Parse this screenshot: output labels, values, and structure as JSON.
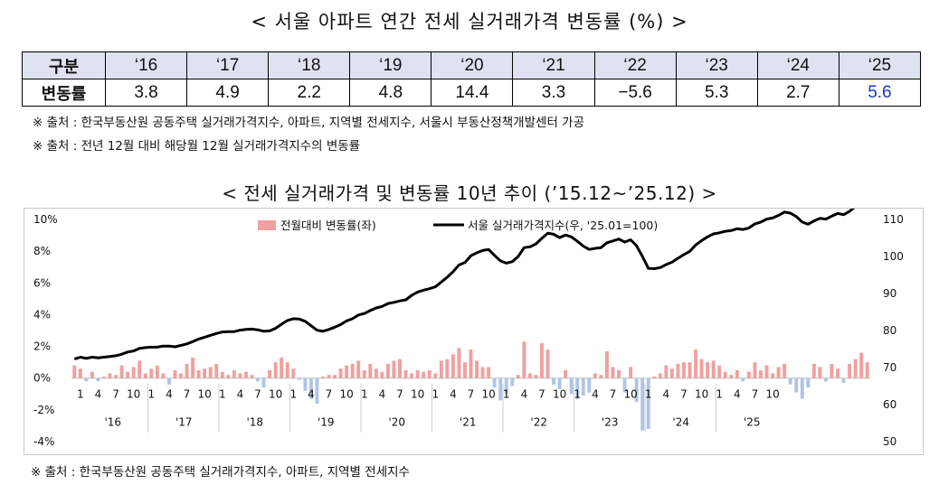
{
  "table": {
    "title": "< 서울 아파트 연간 전세 실거래가격 변동률 (%) >",
    "header_label": "구분",
    "row_label": "변동률",
    "years": [
      "‘16",
      "‘17",
      "‘18",
      "‘19",
      "‘20",
      "‘21",
      "‘22",
      "‘23",
      "‘24",
      "‘25"
    ],
    "values": [
      "3.8",
      "4.9",
      "2.2",
      "4.8",
      "14.4",
      "3.3",
      "−5.6",
      "5.3",
      "2.7",
      "5.6"
    ],
    "highlight_color": "#1f35c4",
    "notes": [
      "※ 출처 : 한국부동산원 공동주택 실거래가격지수, 아파트, 지역별 전세지수, 서울시 부동산정책개발센터 가공",
      "※ 출처 : 전년 12월 대비 해당월 12월 실거래가격지수의 변동률"
    ]
  },
  "chart_data": {
    "type": "bar+line",
    "title": "< 전세 실거래가격 및 변동률 10년 추이 (’15.12~’25.12) >",
    "legend": {
      "bar": "전월대비 변동률(좌)",
      "line": "서울 실거래가격지수(우, '25.01=100)",
      "position": "top-center"
    },
    "left_axis": {
      "min": -4,
      "max": 10,
      "ticks": [
        -4,
        -2,
        0,
        2,
        4,
        6,
        8,
        10
      ],
      "format": "%"
    },
    "right_axis": {
      "min": 50,
      "max": 110,
      "ticks": [
        50,
        60,
        70,
        80,
        90,
        100,
        110
      ]
    },
    "year_labels": [
      "'16",
      "'17",
      "'18",
      "'19",
      "'20",
      "'21",
      "'22",
      "'23",
      "'24",
      "'25"
    ],
    "month_tick_labels": [
      "1",
      "4",
      "7",
      "10"
    ],
    "bar_pos_color": "#f0a0a0",
    "bar_neg_color": "#b0c4e6",
    "line_color": "#000000",
    "monthly_change": [
      0.8,
      0.6,
      -0.2,
      0.4,
      -0.2,
      0.1,
      0.3,
      0.2,
      0.8,
      0.4,
      0.7,
      1.1,
      0.3,
      0.6,
      0.8,
      0.3,
      -0.4,
      0.5,
      0.3,
      0.9,
      1.3,
      0.5,
      0.6,
      0.7,
      0.9,
      0.4,
      0.2,
      0.5,
      0.3,
      0.4,
      0.2,
      -0.2,
      -0.6,
      0.5,
      1.0,
      1.3,
      1.0,
      0.6,
      -0.1,
      -0.8,
      -1.3,
      -1.6,
      0.1,
      0.2,
      0.2,
      0.6,
      0.8,
      0.9,
      1.1,
      0.5,
      0.9,
      0.6,
      0.4,
      0.9,
      1.1,
      1.2,
      0.5,
      0.3,
      0.5,
      0.4,
      0.5,
      0.3,
      1.1,
      1.2,
      1.5,
      1.9,
      1.0,
      1.8,
      1.1,
      0.7,
      0.7,
      -0.6,
      -1.4,
      -1.0,
      -0.5,
      0.2,
      2.3,
      0.3,
      0.2,
      2.2,
      1.8,
      -0.4,
      -0.7,
      0.5,
      -1.0,
      -1.3,
      -1.1,
      -0.9,
      0.3,
      0.2,
      1.7,
      0.7,
      0.5,
      -0.9,
      0.7,
      -1.5,
      -3.3,
      -3.2,
      0.1,
      0.3,
      0.8,
      0.6,
      0.9,
      1.0,
      1.0,
      1.8,
      1.2,
      1.0,
      1.1,
      0.8,
      0.4,
      0.2,
      0.5,
      -0.2,
      0.4,
      1.0,
      0.5,
      0.8,
      0.3,
      0.7,
      0.9,
      -0.4,
      -0.9,
      -1.3,
      -0.6,
      0.9,
      0.7,
      -0.2,
      0.9,
      0.6,
      -0.3,
      0.9,
      1.2,
      1.6,
      1.0
    ],
    "price_index": [
      72.3,
      72.8,
      72.5,
      72.8,
      72.6,
      72.8,
      73.0,
      73.2,
      73.6,
      74.2,
      74.5,
      75.2,
      75.4,
      75.5,
      75.5,
      75.8,
      75.8,
      75.6,
      76.0,
      76.4,
      77.0,
      77.7,
      78.2,
      78.7,
      79.2,
      79.6,
      79.7,
      79.7,
      80.1,
      80.3,
      80.4,
      80.2,
      79.8,
      79.9,
      80.6,
      81.7,
      82.7,
      83.2,
      83.1,
      82.5,
      81.3,
      80.1,
      79.8,
      80.3,
      80.9,
      81.6,
      82.6,
      83.2,
      84.2,
      84.6,
      85.4,
      86.1,
      86.5,
      87.3,
      87.6,
      88.0,
      88.3,
      89.5,
      90.4,
      90.9,
      91.3,
      91.8,
      93.1,
      94.4,
      95.9,
      97.7,
      98.4,
      100.2,
      101.0,
      101.6,
      101.9,
      100.3,
      98.8,
      98.2,
      98.6,
      100.0,
      102.4,
      102.6,
      103.4,
      104.9,
      106.3,
      106.0,
      105.1,
      105.8,
      105.3,
      104.1,
      102.8,
      101.9,
      102.2,
      102.4,
      103.7,
      104.2,
      104.7,
      103.9,
      104.5,
      102.9,
      100.0,
      96.8,
      96.7,
      97.0,
      97.8,
      98.5,
      99.5,
      100.5,
      101.4,
      103.1,
      104.3,
      105.3,
      106.1,
      106.4,
      106.8,
      107.0,
      107.5,
      107.3,
      107.7,
      108.8,
      109.3,
      110.1,
      110.4,
      111.1,
      112.0,
      111.7,
      110.8,
      109.3,
      108.7,
      109.6,
      110.3,
      110.1,
      110.9,
      111.6,
      111.3,
      112.2,
      113.5,
      114.7,
      115.7
    ]
  },
  "footer_note": "※ 출처 : 한국부동산원 공동주택 실거래가격지수, 아파트, 지역별 전세지수"
}
